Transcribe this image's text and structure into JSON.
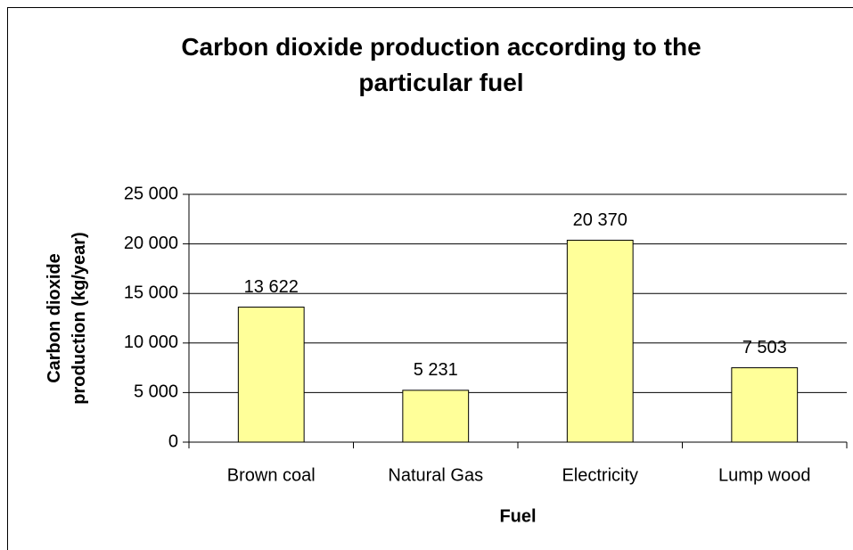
{
  "chart_data": {
    "type": "bar",
    "title": "Carbon dioxide production according to the particular fuel",
    "x_label": "Fuel",
    "y_label": "Carbon dioxide production (kg/year)",
    "categories": [
      "Brown coal",
      "Natural Gas",
      "Electricity",
      "Lump wood"
    ],
    "values": [
      13622,
      5231,
      20370,
      7503
    ],
    "value_labels": [
      "13 622",
      "5 231",
      "20 370",
      "7 503"
    ],
    "color": "#ffff99",
    "ylim": [
      0,
      25000
    ],
    "yticks": [
      0,
      {
        "value": 5000,
        "label": "5 000"
      },
      {
        "value": 10000,
        "label": "10 000"
      },
      {
        "value": 15000,
        "label": "15 000"
      },
      {
        "value": 20000,
        "label": "20 000"
      },
      {
        "value": 25000,
        "label": "25 000"
      }
    ],
    "grid": true
  }
}
